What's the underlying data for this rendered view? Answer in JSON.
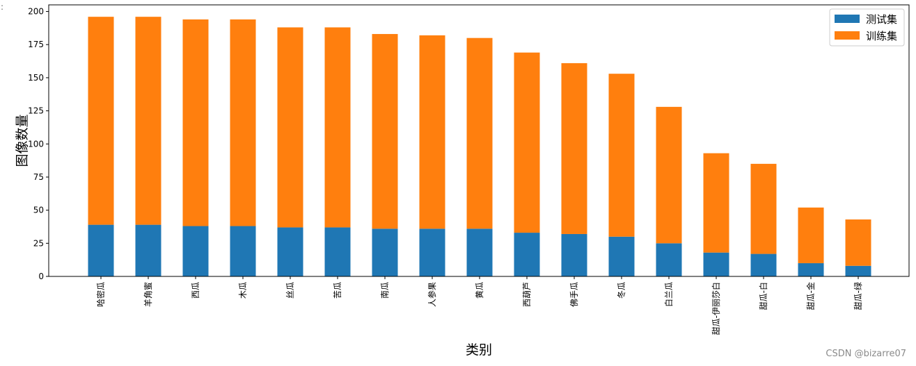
{
  "chart_data": {
    "type": "bar",
    "stacked": true,
    "categories": [
      "哈密瓜",
      "羊角蜜",
      "西瓜",
      "木瓜",
      "丝瓜",
      "苦瓜",
      "南瓜",
      "人参果",
      "黄瓜",
      "西葫芦",
      "佛手瓜",
      "冬瓜",
      "白兰瓜",
      "甜瓜-伊丽莎白",
      "甜瓜-白",
      "甜瓜-金",
      "甜瓜-绿"
    ],
    "series": [
      {
        "name": "测试集",
        "color": "#1f77b4",
        "values": [
          39,
          39,
          38,
          38,
          37,
          37,
          36,
          36,
          36,
          33,
          32,
          30,
          25,
          18,
          17,
          10,
          8
        ]
      },
      {
        "name": "训练集",
        "color": "#ff7f0e",
        "values": [
          157,
          157,
          156,
          156,
          151,
          151,
          147,
          146,
          144,
          136,
          129,
          123,
          103,
          75,
          68,
          42,
          35
        ]
      }
    ],
    "xlabel": "类别",
    "ylabel": "图像数量",
    "ylim": [
      0,
      205
    ],
    "yticks": [
      0,
      25,
      50,
      75,
      100,
      125,
      150,
      175,
      200
    ],
    "legend_position": "top-right",
    "grid": false
  },
  "watermark": "CSDN @bizarre07",
  "corner_mark": ":"
}
